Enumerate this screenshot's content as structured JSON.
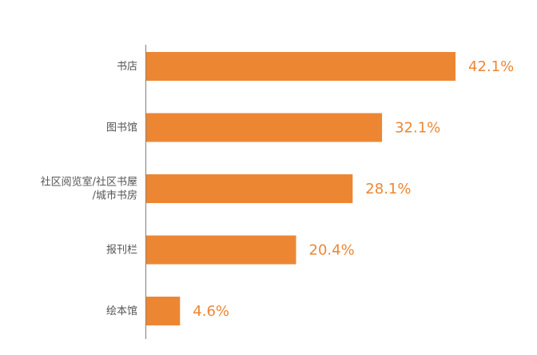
{
  "chart_data": {
    "type": "bar",
    "orientation": "horizontal",
    "categories": [
      "书店",
      "图书馆",
      "社区阅览室/社区书屋/城市书房",
      "报刊栏",
      "绘本馆"
    ],
    "category_lines": [
      [
        "书店"
      ],
      [
        "图书馆"
      ],
      [
        "社区阅览室/社区书屋",
        "/城市书房"
      ],
      [
        "报刊栏"
      ],
      [
        "绘本馆"
      ]
    ],
    "values": [
      42.1,
      32.1,
      28.1,
      20.4,
      4.6
    ],
    "value_labels": [
      "42.1%",
      "32.1%",
      "28.1%",
      "20.4%",
      "4.6%"
    ],
    "title": "",
    "xlabel": "",
    "ylabel": "",
    "xlim": [
      0,
      42.1
    ],
    "grid": false,
    "legend": "none",
    "bar_color": "#ED8633",
    "label_color": "#ED8633",
    "axis_color": "#7F7F7F"
  }
}
